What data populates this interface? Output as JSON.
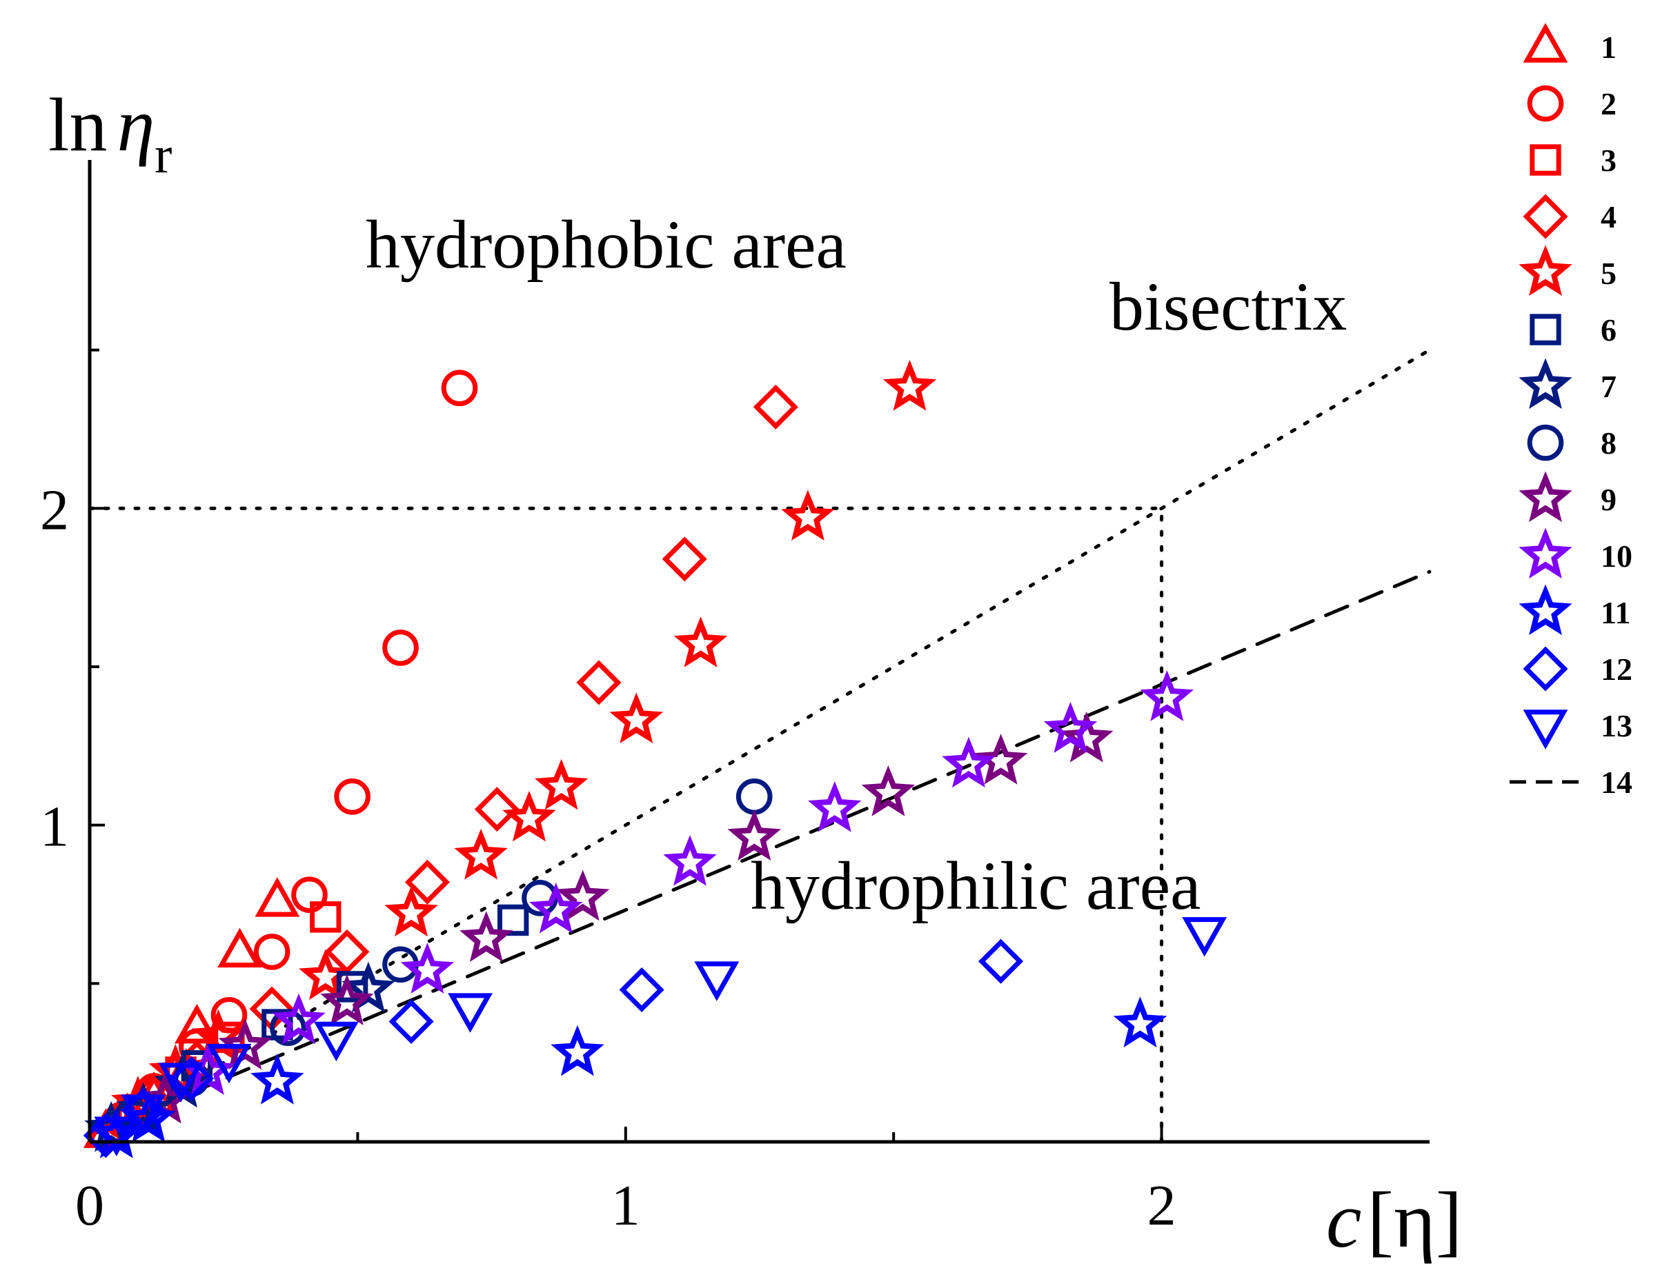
{
  "chart_data": {
    "type": "scatter",
    "title": "",
    "xlabel": {
      "italic": "c",
      "text": "[η]"
    },
    "ylabel": {
      "prefix": "ln",
      "symbol": "η",
      "subscript": "r"
    },
    "xlim": [
      0,
      2.5
    ],
    "ylim": [
      0,
      3.1
    ],
    "x_ticks": [
      0,
      1,
      2
    ],
    "y_ticks": [
      1,
      2
    ],
    "x_minor_ticks": [
      0.5,
      1.5
    ],
    "y_minor_ticks": [
      0.5,
      1.5,
      2.5
    ],
    "grid": false,
    "legend_position": "right",
    "annotations": {
      "hydrophobic": "hydrophobic area",
      "hydrophilic": "hydrophilic area",
      "bisectrix": "bisectrix"
    },
    "reference_lines": [
      {
        "name": "bisectrix",
        "style": "dotted",
        "x": [
          0,
          2.5
        ],
        "y": [
          0,
          2.5
        ]
      },
      {
        "name": "h-guide-2",
        "style": "dotted",
        "x": [
          0,
          2
        ],
        "y": [
          2,
          2
        ]
      },
      {
        "name": "v-guide-2",
        "style": "dotted",
        "x": [
          2,
          2
        ],
        "y": [
          0,
          2
        ]
      },
      {
        "name": "14",
        "style": "dashed",
        "x": [
          0,
          2.5
        ],
        "y": [
          0.02,
          1.8
        ]
      }
    ],
    "series": [
      {
        "name": "1",
        "marker": "triangle-up",
        "color": "#ff0000",
        "points": [
          [
            0.03,
            0.03
          ],
          [
            0.07,
            0.08
          ],
          [
            0.12,
            0.14
          ],
          [
            0.18,
            0.22
          ],
          [
            0.2,
            0.36
          ],
          [
            0.28,
            0.6
          ],
          [
            0.35,
            0.76
          ]
        ]
      },
      {
        "name": "2",
        "marker": "circle",
        "color": "#ff0000",
        "points": [
          [
            0.06,
            0.07
          ],
          [
            0.12,
            0.16
          ],
          [
            0.2,
            0.3
          ],
          [
            0.26,
            0.4
          ],
          [
            0.34,
            0.6
          ],
          [
            0.41,
            0.78
          ],
          [
            0.49,
            1.09
          ],
          [
            0.58,
            1.56
          ],
          [
            0.69,
            2.38
          ]
        ]
      },
      {
        "name": "3",
        "marker": "square",
        "color": "#ff0000",
        "points": [
          [
            0.08,
            0.1
          ],
          [
            0.17,
            0.22
          ],
          [
            0.26,
            0.33
          ],
          [
            0.44,
            0.71
          ]
        ]
      },
      {
        "name": "4",
        "marker": "diamond",
        "color": "#ff0000",
        "points": [
          [
            0.06,
            0.07
          ],
          [
            0.12,
            0.15
          ],
          [
            0.2,
            0.25
          ],
          [
            0.34,
            0.42
          ],
          [
            0.48,
            0.6
          ],
          [
            0.63,
            0.82
          ],
          [
            0.76,
            1.05
          ],
          [
            0.95,
            1.45
          ],
          [
            1.11,
            1.84
          ],
          [
            1.28,
            2.32
          ]
        ]
      },
      {
        "name": "5",
        "marker": "star",
        "color": "#ff0000",
        "points": [
          [
            0.09,
            0.12
          ],
          [
            0.16,
            0.22
          ],
          [
            0.24,
            0.33
          ],
          [
            0.44,
            0.52
          ],
          [
            0.6,
            0.72
          ],
          [
            0.73,
            0.9
          ],
          [
            0.82,
            1.02
          ],
          [
            0.88,
            1.12
          ],
          [
            1.02,
            1.33
          ],
          [
            1.14,
            1.57
          ],
          [
            1.34,
            1.97
          ],
          [
            1.53,
            2.38
          ]
        ]
      },
      {
        "name": "6",
        "marker": "square",
        "color": "#001a80",
        "points": [
          [
            0.2,
            0.24
          ],
          [
            0.35,
            0.37
          ],
          [
            0.49,
            0.49
          ],
          [
            0.79,
            0.7
          ]
        ]
      },
      {
        "name": "7",
        "marker": "star",
        "color": "#001a80",
        "points": [
          [
            0.04,
            0.04
          ],
          [
            0.1,
            0.1
          ],
          [
            0.17,
            0.18
          ],
          [
            0.52,
            0.48
          ]
        ]
      },
      {
        "name": "8",
        "marker": "circle",
        "color": "#001a80",
        "points": [
          [
            0.08,
            0.08
          ],
          [
            0.19,
            0.2
          ],
          [
            0.37,
            0.36
          ],
          [
            0.58,
            0.56
          ],
          [
            0.84,
            0.77
          ],
          [
            1.24,
            1.09
          ]
        ]
      },
      {
        "name": "9",
        "marker": "star",
        "color": "#7a0080",
        "points": [
          [
            0.14,
            0.13
          ],
          [
            0.29,
            0.3
          ],
          [
            0.48,
            0.44
          ],
          [
            0.74,
            0.64
          ],
          [
            0.92,
            0.77
          ],
          [
            1.24,
            0.96
          ],
          [
            1.49,
            1.1
          ],
          [
            1.7,
            1.2
          ],
          [
            1.86,
            1.27
          ]
        ]
      },
      {
        "name": "10",
        "marker": "star",
        "color": "#8000ff",
        "points": [
          [
            0.22,
            0.22
          ],
          [
            0.39,
            0.38
          ],
          [
            0.63,
            0.54
          ],
          [
            0.87,
            0.73
          ],
          [
            1.12,
            0.88
          ],
          [
            1.39,
            1.05
          ],
          [
            1.64,
            1.19
          ],
          [
            1.83,
            1.3
          ],
          [
            2.01,
            1.4
          ]
        ]
      },
      {
        "name": "11",
        "marker": "star",
        "color": "#0000ff",
        "points": [
          [
            0.05,
            0.02
          ],
          [
            0.11,
            0.07
          ],
          [
            0.35,
            0.19
          ],
          [
            0.91,
            0.28
          ],
          [
            1.96,
            0.37
          ]
        ]
      },
      {
        "name": "12",
        "marker": "diamond",
        "color": "#0000ff",
        "points": [
          [
            0.03,
            0.02
          ],
          [
            0.1,
            0.1
          ],
          [
            0.19,
            0.2
          ],
          [
            0.6,
            0.38
          ],
          [
            1.03,
            0.48
          ],
          [
            1.7,
            0.57
          ]
        ]
      },
      {
        "name": "13",
        "marker": "triangle-down",
        "color": "#0000ff",
        "points": [
          [
            0.05,
            0.03
          ],
          [
            0.1,
            0.1
          ],
          [
            0.17,
            0.2
          ],
          [
            0.26,
            0.26
          ],
          [
            0.46,
            0.33
          ],
          [
            0.71,
            0.42
          ],
          [
            1.17,
            0.52
          ],
          [
            2.08,
            0.66
          ]
        ]
      }
    ],
    "legend": [
      {
        "label": "1",
        "marker": "triangle-up",
        "color": "#ff0000"
      },
      {
        "label": "2",
        "marker": "circle",
        "color": "#ff0000"
      },
      {
        "label": "3",
        "marker": "square",
        "color": "#ff0000"
      },
      {
        "label": "4",
        "marker": "diamond",
        "color": "#ff0000"
      },
      {
        "label": "5",
        "marker": "star",
        "color": "#ff0000"
      },
      {
        "label": "6",
        "marker": "square",
        "color": "#001a80"
      },
      {
        "label": "7",
        "marker": "star",
        "color": "#001a80"
      },
      {
        "label": "8",
        "marker": "circle",
        "color": "#001a80"
      },
      {
        "label": "9",
        "marker": "star",
        "color": "#7a0080"
      },
      {
        "label": "10",
        "marker": "star",
        "color": "#8000ff"
      },
      {
        "label": "11",
        "marker": "star",
        "color": "#0000ff"
      },
      {
        "label": "12",
        "marker": "diamond",
        "color": "#0000ff"
      },
      {
        "label": "13",
        "marker": "triangle-down",
        "color": "#0000ff"
      },
      {
        "label": "14",
        "marker": "dashed-line",
        "color": "#000000"
      }
    ]
  }
}
